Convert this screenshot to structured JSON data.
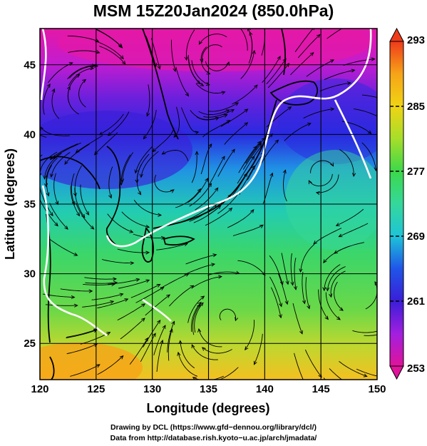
{
  "title": "MSM 15Z20Jan2024 (850.0hPa)",
  "chart_data": {
    "type": "map",
    "x_axis": {
      "label": "Longitude (degrees)",
      "range": [
        120,
        150
      ],
      "ticks": [
        120,
        125,
        130,
        135,
        140,
        145,
        150
      ]
    },
    "y_axis": {
      "label": "Latitude  (degrees)",
      "range": [
        22.4,
        47.6
      ],
      "ticks": [
        25,
        30,
        35,
        40,
        45
      ]
    },
    "grid": true,
    "colorbar": {
      "position": "right",
      "range": [
        253,
        293
      ],
      "tick_labels": [
        "293",
        "285",
        "277",
        "269",
        "261",
        "253"
      ],
      "extend": "both",
      "colors": [
        "#e0139a",
        "#a21fe0",
        "#3a1ed8",
        "#1f55e8",
        "#1ec4d8",
        "#35d89a",
        "#3cd84a",
        "#a6de2a",
        "#f0d414",
        "#f7a418",
        "#ef3a1a"
      ]
    },
    "overlays": [
      "coastlines",
      "wind streamlines",
      "white contour line"
    ]
  },
  "footer": {
    "line1": "Drawing by DCL (https://www.gfd−dennou.org/library/dcl/)",
    "line2": "Data from http://database.rish.kyoto−u.ac.jp/arch/jmadata/"
  },
  "colors": {
    "grid": "#000000",
    "contour": "#ffffff",
    "streamline": "#000000",
    "coast": "#000000"
  }
}
